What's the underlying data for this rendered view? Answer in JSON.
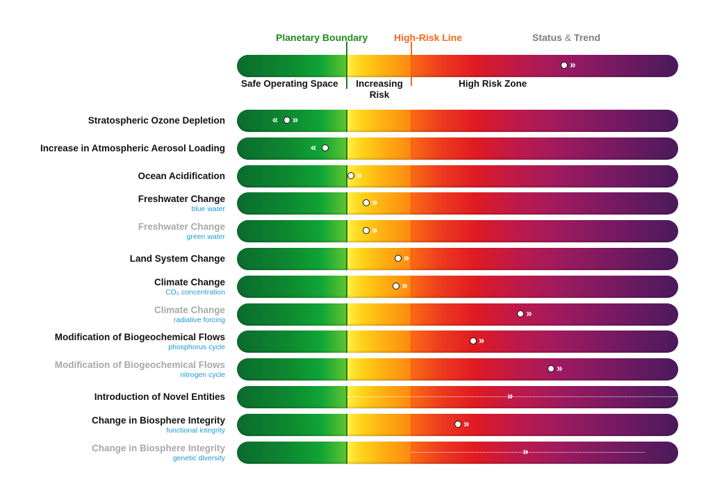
{
  "header": {
    "planetary_boundary": "Planetary Boundary",
    "high_risk_line": "High-Risk Line",
    "status_word": "Status",
    "amp": "&",
    "trend_word": "Trend"
  },
  "legend_bar": {
    "zones": {
      "safe": "Safe Operating Space",
      "increasing_line1": "Increasing",
      "increasing_line2": "Risk",
      "high": "High Risk Zone"
    },
    "status_pct": 74.2,
    "trend": "worsening"
  },
  "colors": {
    "planetary_boundary": "#1f8a1f",
    "high_risk_line": "#f26a1b",
    "status_trend": "#7d7d7d",
    "subtitle": "#1a9ad6",
    "muted_title": "#a8a8a8"
  },
  "scale": {
    "planetary_boundary_pct": 24.9,
    "high_risk_pct": 39.5
  },
  "rows": [
    {
      "title": "Stratospheric Ozone Depletion",
      "subtitle": "",
      "muted": false,
      "status_pct": 11.3,
      "trend": "both",
      "quantified": true
    },
    {
      "title": "Increase in Atmospheric Aerosol Loading",
      "subtitle": "",
      "muted": false,
      "status_pct": 20.0,
      "trend": "improving",
      "quantified": true
    },
    {
      "title": "Ocean Acidification",
      "subtitle": "",
      "muted": false,
      "status_pct": 25.8,
      "trend": "worsening",
      "quantified": true
    },
    {
      "title": "Freshwater Change",
      "subtitle": "blue water",
      "muted": false,
      "status_pct": 29.3,
      "trend": "worsening",
      "quantified": true
    },
    {
      "title": "Freshwater Change",
      "subtitle": "green water",
      "muted": true,
      "status_pct": 29.3,
      "trend": "worsening",
      "quantified": true
    },
    {
      "title": "Land System Change",
      "subtitle": "",
      "muted": false,
      "status_pct": 36.5,
      "trend": "worsening",
      "quantified": true
    },
    {
      "title": "Climate Change",
      "subtitle": "CO₂ concentration",
      "muted": false,
      "status_pct": 36.1,
      "trend": "worsening",
      "quantified": true
    },
    {
      "title": "Climate Change",
      "subtitle": "radiative forcing",
      "muted": true,
      "status_pct": 64.3,
      "trend": "worsening",
      "quantified": true
    },
    {
      "title": "Modification of Biogeochemical Flows",
      "subtitle": "phosphorus cycle",
      "muted": false,
      "status_pct": 53.5,
      "trend": "worsening",
      "quantified": true
    },
    {
      "title": "Modification of Biogeochemical Flows",
      "subtitle": "nitrogen cycle",
      "muted": true,
      "status_pct": 71.2,
      "trend": "worsening",
      "quantified": true
    },
    {
      "title": "Introduction of Novel Entities",
      "subtitle": "",
      "muted": false,
      "status_pct": 62.2,
      "trend": "worsening",
      "quantified": false,
      "range_pct": [
        24.9,
        100
      ]
    },
    {
      "title": "Change in Biosphere Integrity",
      "subtitle": "functional integrity",
      "muted": false,
      "status_pct": 50.1,
      "trend": "worsening",
      "quantified": true
    },
    {
      "title": "Change in Biosphere Integrity",
      "subtitle": "genetic diversity",
      "muted": true,
      "status_pct": 65.7,
      "trend": "worsening",
      "quantified": false,
      "range_pct": [
        39.5,
        92.4
      ]
    }
  ]
}
